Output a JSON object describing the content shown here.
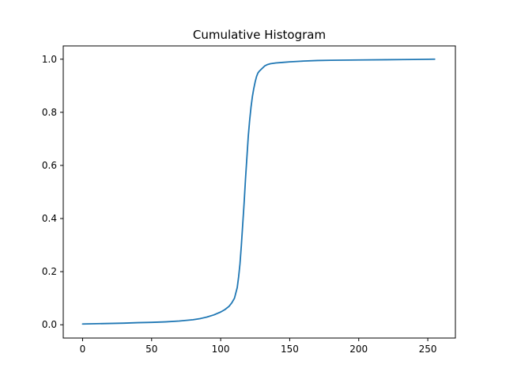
{
  "chart_data": {
    "type": "line",
    "title": "Cumulative Histogram",
    "xlabel": "",
    "ylabel": "",
    "xlim": [
      -14,
      270
    ],
    "ylim": [
      -0.05,
      1.05
    ],
    "x_ticks": [
      0,
      50,
      100,
      150,
      200,
      250
    ],
    "y_ticks": [
      0.0,
      0.2,
      0.4,
      0.6,
      0.8,
      1.0
    ],
    "y_tick_labels": [
      "0.0",
      "0.2",
      "0.4",
      "0.6",
      "0.8",
      "1.0"
    ],
    "grid": false,
    "series": [
      {
        "color": "#1f77b4",
        "x": [
          0,
          10,
          20,
          30,
          40,
          50,
          60,
          70,
          80,
          85,
          90,
          95,
          100,
          103,
          106,
          108,
          110,
          112,
          113,
          114,
          115,
          116,
          117,
          118,
          119,
          120,
          121,
          122,
          123,
          124,
          125,
          126,
          127,
          128,
          130,
          132,
          134,
          136,
          140,
          145,
          150,
          160,
          170,
          180,
          200,
          220,
          240,
          255
        ],
        "y": [
          0.003,
          0.004,
          0.005,
          0.006,
          0.008,
          0.009,
          0.011,
          0.014,
          0.019,
          0.023,
          0.029,
          0.037,
          0.048,
          0.057,
          0.069,
          0.082,
          0.1,
          0.14,
          0.18,
          0.23,
          0.3,
          0.38,
          0.46,
          0.55,
          0.63,
          0.71,
          0.77,
          0.82,
          0.86,
          0.89,
          0.915,
          0.935,
          0.948,
          0.955,
          0.965,
          0.975,
          0.98,
          0.983,
          0.986,
          0.988,
          0.99,
          0.993,
          0.995,
          0.996,
          0.997,
          0.998,
          0.999,
          1.0
        ]
      }
    ]
  }
}
